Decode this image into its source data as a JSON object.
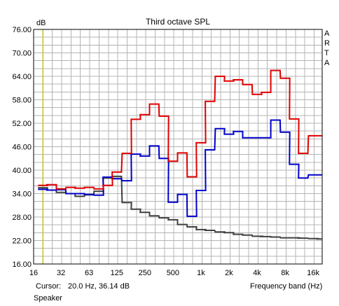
{
  "chart_data": {
    "type": "line",
    "title": "Third octave SPL",
    "ylabel": "dB",
    "xlabel": "Frequency band (Hz)",
    "x_scale": "log",
    "ylim": [
      16,
      76
    ],
    "yticks": [
      16,
      22,
      28,
      34,
      40,
      46,
      52,
      58,
      64,
      70,
      76
    ],
    "ytick_labels": [
      "16.00",
      "22.00",
      "28.00",
      "34.00",
      "40.00",
      "46.00",
      "52.00",
      "58.00",
      "64.00",
      "70.00",
      "76.00"
    ],
    "xlim": [
      16,
      20000
    ],
    "xticks": [
      16,
      31.5,
      63,
      125,
      250,
      500,
      1000,
      2000,
      4000,
      8000,
      16000
    ],
    "xtick_labels": [
      "16",
      "32",
      "63",
      "125",
      "250",
      "500",
      "1k",
      "2k",
      "4k",
      "8k",
      "16k"
    ],
    "grid": true,
    "bands": [
      20,
      25,
      31.5,
      40,
      50,
      63,
      80,
      100,
      125,
      160,
      200,
      250,
      315,
      400,
      500,
      630,
      800,
      1000,
      1250,
      1600,
      2000,
      2500,
      3150,
      4000,
      5000,
      6300,
      8000,
      10000,
      12500,
      16000,
      20000
    ],
    "series": [
      {
        "color": "#e00000",
        "values": [
          36.1,
          36.3,
          35.2,
          35.6,
          35.4,
          35.6,
          35.2,
          36.1,
          39.5,
          44.3,
          53.0,
          54.2,
          56.9,
          53.8,
          42.3,
          44.4,
          38.3,
          47.0,
          57.6,
          64.0,
          62.8,
          63.1,
          61.9,
          59.4,
          59.9,
          65.5,
          63.5,
          53.1,
          44.3,
          48.8,
          48.8
        ]
      },
      {
        "color": "#0000cc",
        "values": [
          35.1,
          34.9,
          35.0,
          34.0,
          34.0,
          33.8,
          33.6,
          38.2,
          37.8,
          37.3,
          44.1,
          43.6,
          46.2,
          43.0,
          31.8,
          33.8,
          28.2,
          34.8,
          45.2,
          50.6,
          49.2,
          49.9,
          48.3,
          48.3,
          48.3,
          52.8,
          49.7,
          41.5,
          38.0,
          38.8,
          38.8
        ]
      },
      {
        "color": "#404040",
        "values": [
          35.5,
          34.9,
          34.3,
          34.0,
          33.3,
          33.7,
          34.6,
          38.0,
          38.4,
          31.7,
          30.0,
          29.2,
          28.3,
          27.8,
          27.3,
          26.1,
          25.5,
          24.8,
          24.6,
          24.2,
          24.0,
          23.6,
          23.4,
          23.1,
          23.0,
          22.9,
          22.7,
          22.7,
          22.6,
          22.5,
          22.4
        ]
      }
    ],
    "cursor": {
      "x": 20,
      "color": "#c8c800"
    }
  },
  "side_label": [
    "A",
    "R",
    "T",
    "A"
  ],
  "info": {
    "cursor_label": "Cursor:",
    "cursor_value": "20.0 Hz, 36.14 dB",
    "source": "Speaker"
  }
}
